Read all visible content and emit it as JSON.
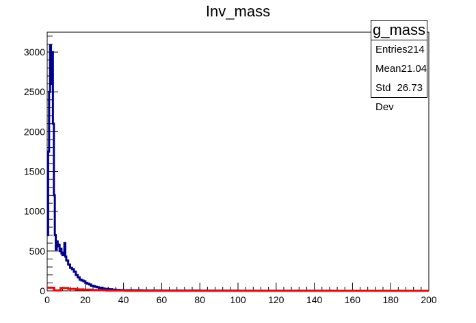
{
  "chart_data": {
    "type": "line",
    "title": "Inv_mass",
    "xlim": [
      0,
      200
    ],
    "ylim": [
      0,
      3250
    ],
    "x_ticks": [
      0,
      20,
      40,
      60,
      80,
      100,
      120,
      140,
      160,
      180,
      200
    ],
    "y_ticks": [
      0,
      500,
      1000,
      1500,
      2000,
      2500,
      3000
    ],
    "grid": false,
    "series": [
      {
        "color": "#00008b",
        "x": [
          0,
          0.5,
          1,
          1.5,
          2,
          2.5,
          3,
          3.5,
          4,
          4.5,
          5,
          5.5,
          6,
          6.5,
          7,
          7.5,
          8,
          8.5,
          9,
          9.5,
          10,
          11,
          12,
          13,
          14,
          15,
          16,
          17,
          18,
          19,
          20,
          21,
          22,
          23,
          24,
          25,
          26,
          27,
          28,
          29,
          30,
          32,
          34,
          36,
          38,
          40,
          45,
          50,
          60,
          80,
          100,
          150,
          200
        ],
        "y": [
          700,
          1750,
          2500,
          3080,
          2600,
          3000,
          2100,
          1200,
          700,
          520,
          620,
          560,
          580,
          500,
          530,
          470,
          450,
          480,
          600,
          430,
          380,
          330,
          290,
          270,
          240,
          200,
          170,
          140,
          130,
          120,
          100,
          90,
          80,
          65,
          60,
          50,
          45,
          35,
          40,
          30,
          25,
          20,
          15,
          12,
          10,
          8,
          6,
          4,
          3,
          2,
          1,
          0,
          0
        ]
      },
      {
        "color": "#ff0000",
        "x": [
          0,
          3,
          3.5,
          6,
          7,
          10,
          11,
          14,
          15,
          18,
          19,
          22,
          23,
          26,
          27,
          30,
          31,
          40,
          41,
          200
        ],
        "y": [
          40,
          40,
          5,
          5,
          35,
          35,
          25,
          25,
          18,
          18,
          15,
          15,
          10,
          10,
          8,
          8,
          3,
          3,
          0,
          0
        ]
      }
    ]
  },
  "stats": {
    "title": "g_mass",
    "rows": [
      {
        "label": "Entries",
        "value": "214"
      },
      {
        "label": "Mean",
        "value": "21.04"
      },
      {
        "label": "Std Dev",
        "value": "26.73"
      }
    ]
  }
}
